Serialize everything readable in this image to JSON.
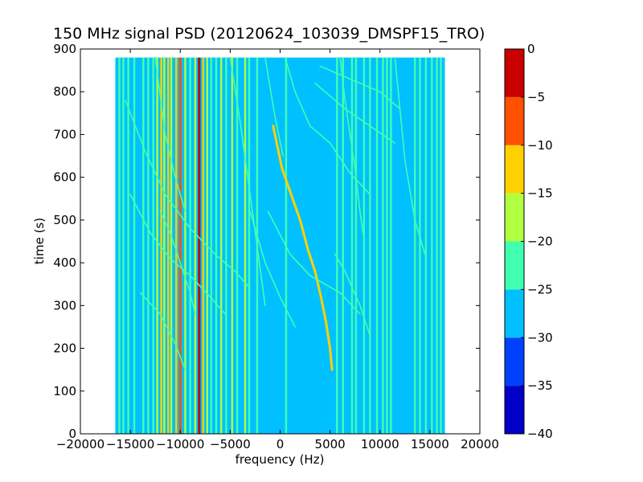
{
  "chart_data": {
    "type": "heatmap",
    "title": "150 MHz signal PSD (20120624_103039_DMSPF15_TRO)",
    "xlabel": "frequency (Hz)",
    "ylabel": "time (s)",
    "xlim": [
      -20000,
      20000
    ],
    "ylim": [
      0,
      900
    ],
    "xticks": [
      -20000,
      -15000,
      -10000,
      -5000,
      0,
      5000,
      10000,
      15000,
      20000
    ],
    "yticks": [
      0,
      100,
      200,
      300,
      400,
      500,
      600,
      700,
      800,
      900
    ],
    "data_extent": {
      "freq": [
        -16500,
        16500
      ],
      "time": [
        0,
        880
      ]
    },
    "background_level_db": -28,
    "colorbar": {
      "levels": [
        -40,
        -35,
        -30,
        -25,
        -20,
        -15,
        -10,
        -5,
        0
      ],
      "colors": [
        "#0000c8",
        "#0040ff",
        "#00c0ff",
        "#40ffb0",
        "#b0ff40",
        "#ffd000",
        "#ff5000",
        "#c80000"
      ]
    },
    "vertical_lines": [
      {
        "freq": -16100,
        "level_db": -22
      },
      {
        "freq": -15700,
        "level_db": -22
      },
      {
        "freq": -15200,
        "level_db": -22
      },
      {
        "freq": -14600,
        "level_db": -22
      },
      {
        "freq": -13700,
        "level_db": -22
      },
      {
        "freq": -13200,
        "level_db": -22
      },
      {
        "freq": -12700,
        "level_db": -22
      },
      {
        "freq": -12300,
        "level_db": -18
      },
      {
        "freq": -11900,
        "level_db": -13
      },
      {
        "freq": -11600,
        "level_db": -18
      },
      {
        "freq": -11200,
        "level_db": -13
      },
      {
        "freq": -10900,
        "level_db": -18
      },
      {
        "freq": -10400,
        "level_db": -13
      },
      {
        "freq": -10000,
        "level_db": -8
      },
      {
        "freq": -9500,
        "level_db": -18
      },
      {
        "freq": -9000,
        "level_db": -22
      },
      {
        "freq": -8500,
        "level_db": -18
      },
      {
        "freq": -8100,
        "level_db": -3
      },
      {
        "freq": -7700,
        "level_db": -13
      },
      {
        "freq": -7300,
        "level_db": -18
      },
      {
        "freq": -6900,
        "level_db": -22
      },
      {
        "freq": -6400,
        "level_db": -22
      },
      {
        "freq": -5900,
        "level_db": -18
      },
      {
        "freq": -5400,
        "level_db": -22
      },
      {
        "freq": -4800,
        "level_db": -18
      },
      {
        "freq": -4300,
        "level_db": -22
      },
      {
        "freq": -3500,
        "level_db": -18
      },
      {
        "freq": -3100,
        "level_db": -22
      },
      {
        "freq": -2300,
        "level_db": -22
      },
      {
        "freq": 600,
        "level_db": -22
      },
      {
        "freq": 5700,
        "level_db": -22
      },
      {
        "freq": 6300,
        "level_db": -22
      },
      {
        "freq": 7200,
        "level_db": -22
      },
      {
        "freq": 7600,
        "level_db": -22
      },
      {
        "freq": 8400,
        "level_db": -22
      },
      {
        "freq": 9000,
        "level_db": -22
      },
      {
        "freq": 9700,
        "level_db": -22
      },
      {
        "freq": 10300,
        "level_db": -22
      },
      {
        "freq": 10700,
        "level_db": -22
      },
      {
        "freq": 11100,
        "level_db": -22
      },
      {
        "freq": 13500,
        "level_db": -22
      },
      {
        "freq": 14000,
        "level_db": -22
      },
      {
        "freq": 14600,
        "level_db": -22
      },
      {
        "freq": 15200,
        "level_db": -22
      },
      {
        "freq": 15700,
        "level_db": -22
      },
      {
        "freq": 16100,
        "level_db": -22
      }
    ],
    "tracks": [
      {
        "level_db": -15,
        "points": [
          [
            -700,
            720
          ],
          [
            200,
            620
          ],
          [
            1100,
            560
          ],
          [
            2000,
            500
          ],
          [
            2800,
            430
          ],
          [
            3500,
            380
          ],
          [
            4100,
            320
          ],
          [
            4600,
            260
          ],
          [
            5000,
            200
          ],
          [
            5200,
            150
          ]
        ]
      },
      {
        "level_db": -22,
        "points": [
          [
            -1500,
            880
          ],
          [
            -500,
            740
          ],
          [
            300,
            650
          ]
        ]
      },
      {
        "level_db": -22,
        "points": [
          [
            -15500,
            780
          ],
          [
            -13500,
            660
          ],
          [
            -11500,
            560
          ],
          [
            -9000,
            480
          ],
          [
            -6500,
            420
          ],
          [
            -4500,
            380
          ],
          [
            -3000,
            340
          ]
        ]
      },
      {
        "level_db": -22,
        "points": [
          [
            -15000,
            560
          ],
          [
            -13000,
            470
          ],
          [
            -11000,
            410
          ],
          [
            -9000,
            370
          ],
          [
            -7000,
            320
          ],
          [
            -5500,
            280
          ]
        ]
      },
      {
        "level_db": -22,
        "points": [
          [
            -12500,
            880
          ],
          [
            -11500,
            700
          ],
          [
            -10500,
            600
          ],
          [
            -9500,
            520
          ]
        ]
      },
      {
        "level_db": -22,
        "points": [
          [
            -12000,
            520
          ],
          [
            -11000,
            470
          ],
          [
            -10000,
            400
          ],
          [
            -9000,
            330
          ],
          [
            -8500,
            280
          ]
        ]
      },
      {
        "level_db": -22,
        "points": [
          [
            -5000,
            880
          ],
          [
            -4000,
            730
          ],
          [
            -3000,
            560
          ],
          [
            -2200,
            420
          ],
          [
            -1500,
            300
          ]
        ]
      },
      {
        "level_db": -22,
        "points": [
          [
            -1200,
            520
          ],
          [
            1000,
            420
          ],
          [
            3000,
            370
          ],
          [
            6000,
            330
          ],
          [
            8000,
            280
          ]
        ]
      },
      {
        "level_db": -22,
        "points": [
          [
            -3000,
            520
          ],
          [
            -1500,
            400
          ],
          [
            0,
            320
          ],
          [
            1500,
            250
          ]
        ]
      },
      {
        "level_db": -22,
        "points": [
          [
            500,
            880
          ],
          [
            1500,
            800
          ],
          [
            3000,
            720
          ],
          [
            5000,
            680
          ],
          [
            7000,
            610
          ],
          [
            9000,
            560
          ]
        ]
      },
      {
        "level_db": -22,
        "points": [
          [
            3500,
            820
          ],
          [
            5000,
            790
          ],
          [
            6500,
            760
          ],
          [
            9000,
            720
          ],
          [
            11500,
            680
          ]
        ]
      },
      {
        "level_db": -22,
        "points": [
          [
            6000,
            880
          ],
          [
            6500,
            780
          ],
          [
            7500,
            620
          ],
          [
            8000,
            520
          ],
          [
            8300,
            470
          ]
        ]
      },
      {
        "level_db": -22,
        "points": [
          [
            4000,
            860
          ],
          [
            7000,
            830
          ],
          [
            10000,
            800
          ],
          [
            12000,
            760
          ]
        ]
      },
      {
        "level_db": -22,
        "points": [
          [
            -14000,
            330
          ],
          [
            -12000,
            280
          ],
          [
            -10500,
            210
          ],
          [
            -9500,
            150
          ]
        ]
      },
      {
        "level_db": -22,
        "points": [
          [
            5500,
            420
          ],
          [
            6500,
            380
          ],
          [
            8000,
            300
          ],
          [
            9000,
            230
          ]
        ]
      },
      {
        "level_db": -22,
        "points": [
          [
            11500,
            880
          ],
          [
            12500,
            640
          ],
          [
            13500,
            500
          ],
          [
            14500,
            420
          ]
        ]
      }
    ]
  }
}
